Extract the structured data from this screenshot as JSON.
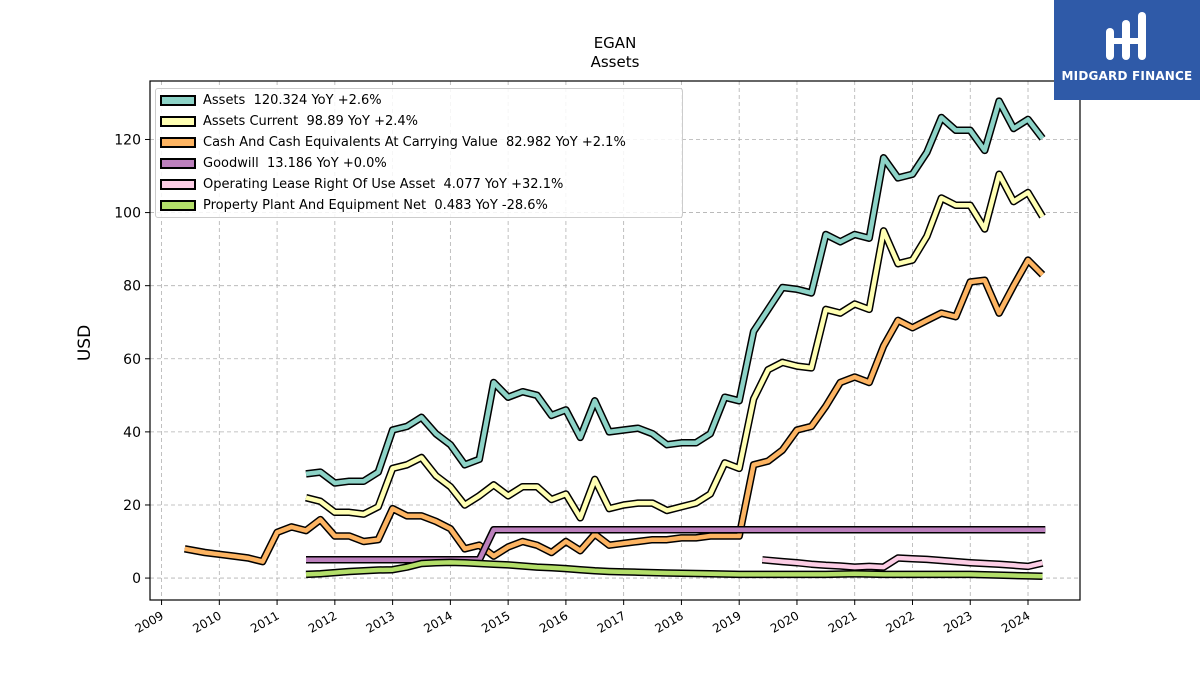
{
  "chart_data": {
    "type": "line",
    "title": "EGAN",
    "subtitle": "Assets",
    "xlabel": "",
    "ylabel": "USD",
    "xlim": [
      2008.8,
      2024.9
    ],
    "ylim": [
      -6,
      136
    ],
    "x_ticks": [
      2009,
      2010,
      2011,
      2012,
      2013,
      2014,
      2015,
      2016,
      2017,
      2018,
      2019,
      2020,
      2021,
      2022,
      2023,
      2024
    ],
    "x_tick_labels": [
      "2009",
      "2010",
      "2011",
      "2012",
      "2013",
      "2014",
      "2015",
      "2016",
      "2017",
      "2018",
      "2019",
      "2020",
      "2021",
      "2022",
      "2023",
      "2024"
    ],
    "y_ticks": [
      0,
      20,
      40,
      60,
      80,
      100,
      120
    ],
    "y_tick_labels": [
      "0",
      "20",
      "40",
      "60",
      "80",
      "100",
      "120"
    ],
    "grid": true,
    "legend_position": "top-left",
    "series": [
      {
        "name": "Assets",
        "legend_label": "Assets  120.324 YoY +2.6%",
        "color": "#8dd3c7",
        "x": [
          2011.5,
          2011.75,
          2012.0,
          2012.25,
          2012.5,
          2012.75,
          2013.0,
          2013.25,
          2013.5,
          2013.75,
          2014.0,
          2014.25,
          2014.5,
          2014.75,
          2015.0,
          2015.25,
          2015.5,
          2015.75,
          2016.0,
          2016.25,
          2016.5,
          2016.75,
          2017.0,
          2017.25,
          2017.5,
          2017.75,
          2018.0,
          2018.25,
          2018.5,
          2018.75,
          2019.0,
          2019.25,
          2019.5,
          2019.75,
          2020.0,
          2020.25,
          2020.5,
          2020.75,
          2021.0,
          2021.25,
          2021.5,
          2021.75,
          2022.0,
          2022.25,
          2022.5,
          2022.75,
          2023.0,
          2023.25,
          2023.5,
          2023.75,
          2024.0,
          2024.25
        ],
        "values": [
          28.5,
          29.0,
          26.0,
          26.5,
          26.5,
          29.0,
          40.5,
          41.5,
          44.0,
          39.5,
          36.5,
          31.0,
          32.5,
          53.5,
          49.5,
          51.0,
          50.0,
          44.5,
          46.0,
          38.5,
          48.5,
          40.0,
          40.5,
          41.0,
          39.5,
          36.5,
          37.0,
          37.0,
          39.5,
          49.5,
          48.5,
          67.5,
          73.5,
          79.5,
          79.0,
          78.0,
          94.0,
          92.0,
          94.0,
          93.0,
          115.0,
          109.5,
          110.5,
          116.5,
          126.0,
          122.5,
          122.5,
          117.0,
          130.5,
          123.0,
          125.5,
          120.3
        ]
      },
      {
        "name": "Assets Current",
        "legend_label": "Assets Current  98.89 YoY +2.4%",
        "color": "#ffffb3",
        "x": [
          2011.5,
          2011.75,
          2012.0,
          2012.25,
          2012.5,
          2012.75,
          2013.0,
          2013.25,
          2013.5,
          2013.75,
          2014.0,
          2014.25,
          2014.5,
          2014.75,
          2015.0,
          2015.25,
          2015.5,
          2015.75,
          2016.0,
          2016.25,
          2016.5,
          2016.75,
          2017.0,
          2017.25,
          2017.5,
          2017.75,
          2018.0,
          2018.25,
          2018.5,
          2018.75,
          2019.0,
          2019.25,
          2019.5,
          2019.75,
          2020.0,
          2020.25,
          2020.5,
          2020.75,
          2021.0,
          2021.25,
          2021.5,
          2021.75,
          2022.0,
          2022.25,
          2022.5,
          2022.75,
          2023.0,
          2023.25,
          2023.5,
          2023.75,
          2024.0,
          2024.25
        ],
        "values": [
          22.0,
          21.0,
          18.0,
          18.0,
          17.5,
          19.5,
          30.0,
          31.0,
          33.0,
          28.0,
          25.0,
          20.0,
          22.5,
          25.5,
          22.5,
          25.0,
          25.0,
          21.5,
          23.0,
          16.5,
          27.0,
          19.0,
          20.0,
          20.5,
          20.5,
          18.5,
          19.5,
          20.5,
          23.0,
          31.5,
          30.0,
          49.0,
          57.0,
          59.0,
          58.0,
          57.5,
          73.5,
          72.5,
          75.0,
          73.5,
          95.0,
          86.0,
          87.0,
          93.5,
          104.0,
          102.0,
          102.0,
          95.5,
          110.5,
          103.0,
          105.5,
          98.9
        ]
      },
      {
        "name": "Cash And Cash Equivalents At Carrying Value",
        "legend_label": "Cash And Cash Equivalents At Carrying Value  82.982 YoY +2.1%",
        "color": "#fdb462",
        "x": [
          2009.4,
          2009.75,
          2010.0,
          2010.25,
          2010.5,
          2010.75,
          2011.0,
          2011.25,
          2011.5,
          2011.75,
          2012.0,
          2012.25,
          2012.5,
          2012.75,
          2013.0,
          2013.25,
          2013.5,
          2013.75,
          2014.0,
          2014.25,
          2014.5,
          2014.75,
          2015.0,
          2015.25,
          2015.5,
          2015.75,
          2016.0,
          2016.25,
          2016.5,
          2016.75,
          2017.0,
          2017.25,
          2017.5,
          2017.75,
          2018.0,
          2018.25,
          2018.5,
          2018.75,
          2019.0,
          2019.25,
          2019.5,
          2019.75,
          2020.0,
          2020.25,
          2020.5,
          2020.75,
          2021.0,
          2021.25,
          2021.5,
          2021.75,
          2022.0,
          2022.25,
          2022.5,
          2022.75,
          2023.0,
          2023.25,
          2023.5,
          2023.75,
          2024.0,
          2024.25
        ],
        "values": [
          8.0,
          7.0,
          6.5,
          6.0,
          5.5,
          4.5,
          12.5,
          14.0,
          13.0,
          16.0,
          11.5,
          11.5,
          10.0,
          10.5,
          19.0,
          17.0,
          17.0,
          15.5,
          13.5,
          8.0,
          9.0,
          6.0,
          8.5,
          10.0,
          9.0,
          7.0,
          10.0,
          7.5,
          12.0,
          9.0,
          9.5,
          10.0,
          10.5,
          10.5,
          11.0,
          11.0,
          11.5,
          11.5,
          11.5,
          31.0,
          32.0,
          35.0,
          40.5,
          41.5,
          47.0,
          53.5,
          55.0,
          53.5,
          63.5,
          70.5,
          68.5,
          70.5,
          72.5,
          71.5,
          81.0,
          81.5,
          72.5,
          80.0,
          87.0,
          83.0
        ]
      },
      {
        "name": "Goodwill",
        "legend_label": "Goodwill  13.186 YoY +0.0%",
        "color": "#bc80bd",
        "x": [
          2011.5,
          2012.0,
          2013.0,
          2014.0,
          2014.5,
          2014.75,
          2015.5,
          2017.0,
          2018.5,
          2020.0,
          2021.5,
          2023.0,
          2024.3
        ],
        "values": [
          5.0,
          5.0,
          5.0,
          5.0,
          5.0,
          13.2,
          13.2,
          13.2,
          13.2,
          13.2,
          13.2,
          13.2,
          13.2
        ]
      },
      {
        "name": "Operating Lease Right Of Use Asset",
        "legend_label": "Operating Lease Right Of Use Asset  4.077 YoY +32.1%",
        "color": "#fccde5",
        "x": [
          2019.4,
          2019.75,
          2020.0,
          2020.25,
          2020.5,
          2020.75,
          2021.0,
          2021.25,
          2021.5,
          2021.75,
          2022.0,
          2022.25,
          2022.5,
          2022.75,
          2023.0,
          2023.25,
          2023.5,
          2023.75,
          2024.0,
          2024.25
        ],
        "values": [
          5.0,
          4.5,
          4.2,
          3.8,
          3.5,
          3.3,
          3.0,
          3.2,
          3.0,
          5.5,
          5.3,
          5.1,
          4.8,
          4.5,
          4.2,
          4.0,
          3.8,
          3.5,
          3.2,
          4.1
        ]
      },
      {
        "name": "Property Plant And Equipment Net",
        "legend_label": "Property Plant And Equipment Net  0.483 YoY -28.6%",
        "color": "#b3de69",
        "x": [
          2011.5,
          2011.75,
          2012.0,
          2012.25,
          2012.5,
          2012.75,
          2013.0,
          2013.25,
          2013.5,
          2013.75,
          2014.0,
          2014.25,
          2014.5,
          2014.75,
          2015.0,
          2015.25,
          2015.5,
          2015.75,
          2016.0,
          2016.25,
          2016.5,
          2016.75,
          2017.0,
          2017.25,
          2017.5,
          2017.75,
          2018.0,
          2018.5,
          2019.0,
          2019.5,
          2020.0,
          2020.5,
          2021.0,
          2021.5,
          2022.0,
          2022.5,
          2023.0,
          2023.5,
          2024.0,
          2024.25
        ],
        "values": [
          1.0,
          1.2,
          1.5,
          1.8,
          2.0,
          2.2,
          2.3,
          3.0,
          4.0,
          4.2,
          4.3,
          4.2,
          4.0,
          3.8,
          3.6,
          3.3,
          3.0,
          2.8,
          2.6,
          2.3,
          2.0,
          1.8,
          1.7,
          1.6,
          1.5,
          1.4,
          1.3,
          1.2,
          1.0,
          1.0,
          1.0,
          1.0,
          1.2,
          1.0,
          1.0,
          1.0,
          1.0,
          0.8,
          0.6,
          0.5
        ]
      }
    ]
  },
  "logo": {
    "text": "MIDGARD FINANCE",
    "color": "#2f5aa8"
  }
}
